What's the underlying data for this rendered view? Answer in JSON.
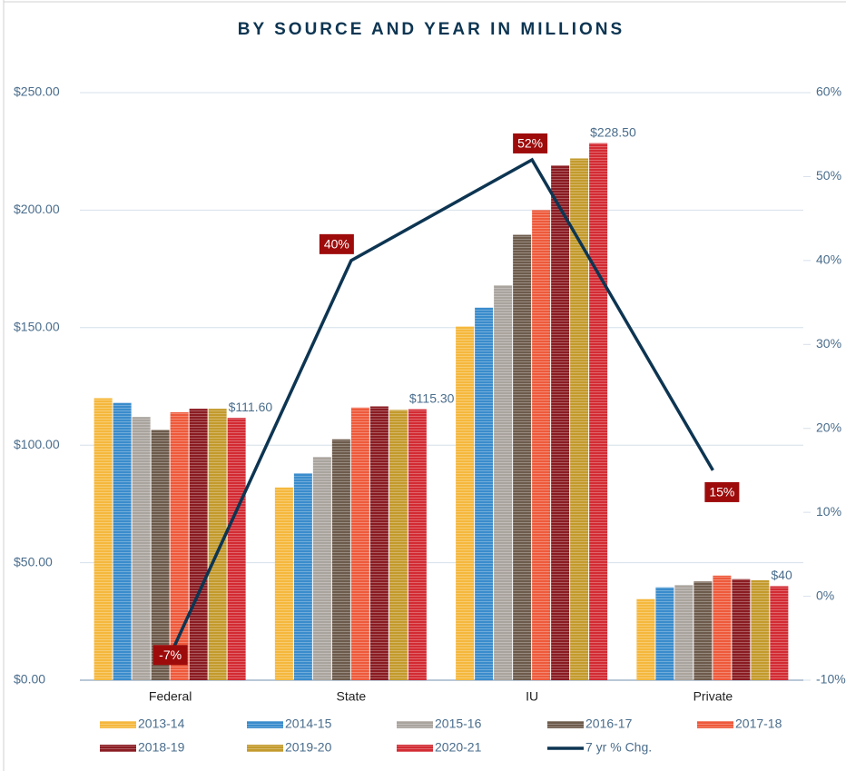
{
  "chart_data": {
    "type": "bar",
    "title": "BY SOURCE AND YEAR IN MILLIONS",
    "categories": [
      "Federal",
      "State",
      "IU",
      "Private"
    ],
    "series": [
      {
        "name": "2013-14",
        "color": "#f5b83d",
        "values": [
          120,
          82,
          150.5,
          34.5
        ]
      },
      {
        "name": "2014-15",
        "color": "#3a8ccc",
        "values": [
          118,
          88,
          158.5,
          39.5
        ]
      },
      {
        "name": "2015-16",
        "color": "#aaa49e",
        "values": [
          112,
          95,
          168,
          40.5
        ]
      },
      {
        "name": "2016-17",
        "color": "#6d5b4c",
        "values": [
          106.5,
          102.5,
          189.5,
          42
        ]
      },
      {
        "name": "2017-18",
        "color": "#ee5a3b",
        "values": [
          114,
          116,
          200,
          44.5
        ]
      },
      {
        "name": "2018-19",
        "color": "#8a1c22",
        "values": [
          115.5,
          116.5,
          219,
          43
        ]
      },
      {
        "name": "2019-20",
        "color": "#c39a2c",
        "values": [
          115.5,
          115,
          222,
          42.5
        ]
      },
      {
        "name": "2020-21",
        "color": "#d32b33",
        "values": [
          111.6,
          115.3,
          228.5,
          40
        ],
        "value_labels": [
          "$111.60",
          "$115.30",
          "$228.50",
          "$40"
        ]
      },
      {
        "name": "7 yr % Chg.",
        "type": "line",
        "axis": "y2",
        "color": "#0d3552",
        "values": [
          -7,
          40,
          52,
          15
        ],
        "value_labels": [
          "-7%",
          "40%",
          "52%",
          "15%"
        ]
      }
    ],
    "ylim": [
      0,
      250
    ],
    "yticks": [
      {
        "value": 0,
        "label": "$0.00"
      },
      {
        "value": 50,
        "label": "$50.00"
      },
      {
        "value": 100,
        "label": "$100.00"
      },
      {
        "value": 150,
        "label": "$150.00"
      },
      {
        "value": 200,
        "label": "$200.00"
      },
      {
        "value": 250,
        "label": "$250.00"
      }
    ],
    "y2lim": [
      -10,
      60
    ],
    "y2ticks": [
      {
        "value": -10,
        "label": "-10%"
      },
      {
        "value": 0,
        "label": "0%"
      },
      {
        "value": 10,
        "label": "10%"
      },
      {
        "value": 20,
        "label": "20%"
      },
      {
        "value": 30,
        "label": "30%"
      },
      {
        "value": 40,
        "label": "40%"
      },
      {
        "value": 50,
        "label": "50%"
      },
      {
        "value": 60,
        "label": "60%"
      }
    ],
    "grid": true,
    "legend": "bottom"
  }
}
